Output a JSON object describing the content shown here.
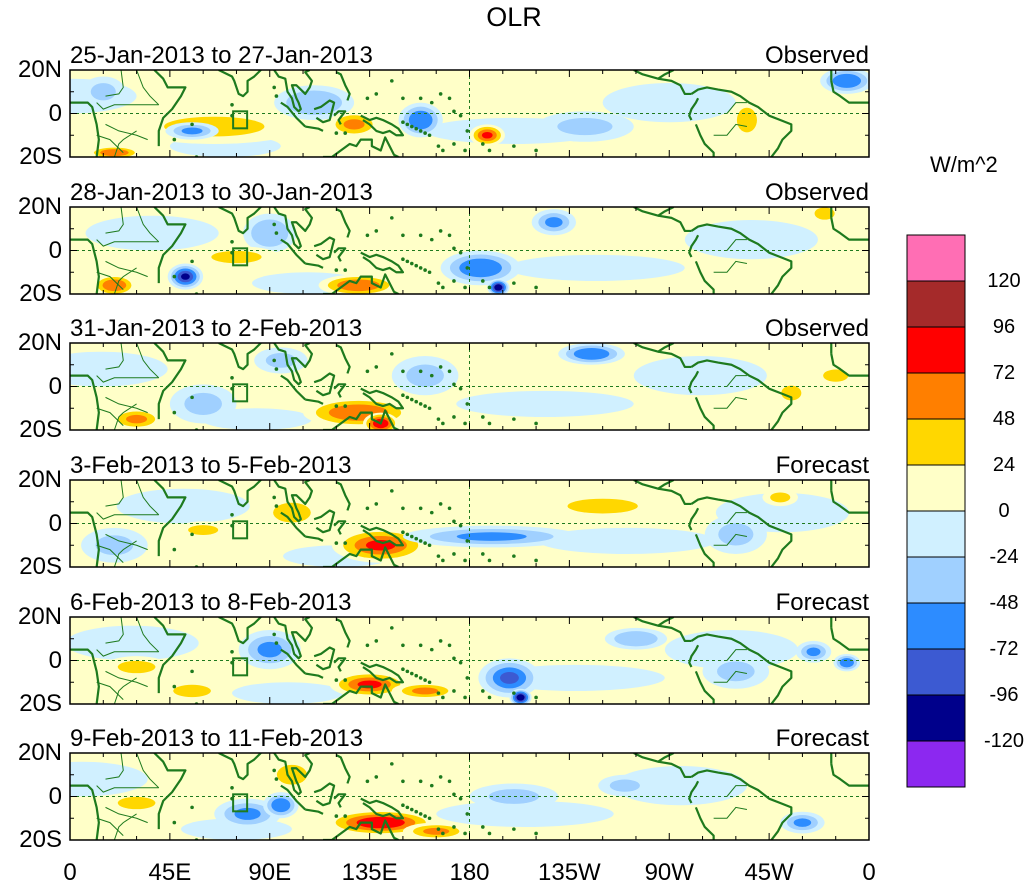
{
  "title": "OLR",
  "panels": [
    {
      "period": "25-Jan-2013 to 27-Jan-2013",
      "kind": "Observed"
    },
    {
      "period": "28-Jan-2013 to 30-Jan-2013",
      "kind": "Observed"
    },
    {
      "period": "31-Jan-2013 to 2-Feb-2013",
      "kind": "Observed"
    },
    {
      "period": "3-Feb-2013 to 5-Feb-2013",
      "kind": "Forecast"
    },
    {
      "period": "6-Feb-2013 to 8-Feb-2013",
      "kind": "Forecast"
    },
    {
      "period": "9-Feb-2013 to 11-Feb-2013",
      "kind": "Forecast"
    }
  ],
  "lat_labels": [
    "20N",
    "0",
    "20S"
  ],
  "lon_labels": [
    "0",
    "45E",
    "90E",
    "135E",
    "180",
    "135W",
    "90W",
    "45W",
    "0"
  ],
  "colorbar": {
    "unit": "W/m^2",
    "labels": [
      "120",
      "96",
      "72",
      "48",
      "24",
      "0",
      "-24",
      "-48",
      "-72",
      "-96",
      "-120"
    ],
    "colors": [
      "#ff6eb4",
      "#a52a2a",
      "#ff0000",
      "#ff7f00",
      "#ffd700",
      "#ffffc8",
      "#d0f0ff",
      "#a0d0ff",
      "#2d8cff",
      "#3c5ad2",
      "#00008b",
      "#8c28f0"
    ]
  },
  "colors": {
    "coast": "#1e7a1e",
    "neutral_positive": "#ffffc8",
    "neutral_negative": "#d0f0ff"
  },
  "anomalies": [
    [
      {
        "lon": 65,
        "lat": -6,
        "rlon": 40,
        "rlat": 8,
        "v": 30
      },
      {
        "lon": 55,
        "lat": -8,
        "rlon": 12,
        "rlat": 4,
        "v": -55
      },
      {
        "lon": 110,
        "lat": 5,
        "rlon": 18,
        "rlat": 8,
        "v": -40
      },
      {
        "lon": 128,
        "lat": -5,
        "rlon": 12,
        "rlat": 6,
        "v": 50
      },
      {
        "lon": 158,
        "lat": -3,
        "rlon": 10,
        "rlat": 8,
        "v": -60
      },
      {
        "lon": 188,
        "lat": -10,
        "rlon": 8,
        "rlat": 5,
        "v": 80
      },
      {
        "lon": 232,
        "lat": -6,
        "rlon": 22,
        "rlat": 7,
        "v": -30
      },
      {
        "lon": 15,
        "lat": 10,
        "rlon": 10,
        "rlat": 7,
        "v": -35
      },
      {
        "lon": 350,
        "lat": 15,
        "rlon": 12,
        "rlat": 6,
        "v": -60
      },
      {
        "lon": 305,
        "lat": -3,
        "rlon": 8,
        "rlat": 10,
        "v": 30
      },
      {
        "lon": 20,
        "lat": -18,
        "rlon": 12,
        "rlat": 3,
        "v": 70
      }
    ],
    [
      {
        "lon": 52,
        "lat": -12,
        "rlon": 8,
        "rlat": 6,
        "v": -105
      },
      {
        "lon": 20,
        "lat": -16,
        "rlon": 10,
        "rlat": 5,
        "v": 60
      },
      {
        "lon": 130,
        "lat": -16,
        "rlon": 18,
        "rlat": 5,
        "v": 70
      },
      {
        "lon": 90,
        "lat": 8,
        "rlon": 12,
        "rlat": 9,
        "v": -40
      },
      {
        "lon": 185,
        "lat": -8,
        "rlon": 18,
        "rlat": 8,
        "v": -70
      },
      {
        "lon": 193,
        "lat": -17,
        "rlon": 5,
        "rlat": 4,
        "v": -110
      },
      {
        "lon": 218,
        "lat": 13,
        "rlon": 10,
        "rlat": 6,
        "v": -55
      },
      {
        "lon": 340,
        "lat": 17,
        "rlon": 8,
        "rlat": 5,
        "v": 35
      },
      {
        "lon": 75,
        "lat": -3,
        "rlon": 20,
        "rlat": 5,
        "v": 30
      }
    ],
    [
      {
        "lon": 130,
        "lat": -12,
        "rlon": 25,
        "rlat": 7,
        "v": 65
      },
      {
        "lon": 140,
        "lat": -17,
        "rlon": 8,
        "rlat": 5,
        "v": 90
      },
      {
        "lon": 30,
        "lat": -15,
        "rlon": 12,
        "rlat": 5,
        "v": 55
      },
      {
        "lon": 235,
        "lat": 15,
        "rlon": 15,
        "rlat": 5,
        "v": -70
      },
      {
        "lon": 160,
        "lat": 5,
        "rlon": 15,
        "rlat": 9,
        "v": -35
      },
      {
        "lon": 60,
        "lat": -8,
        "rlon": 15,
        "rlat": 9,
        "v": -30
      },
      {
        "lon": 325,
        "lat": -3,
        "rlon": 8,
        "rlat": 6,
        "v": 35
      },
      {
        "lon": 345,
        "lat": 5,
        "rlon": 10,
        "rlat": 5,
        "v": 35
      },
      {
        "lon": 95,
        "lat": 12,
        "rlon": 12,
        "rlat": 6,
        "v": -25
      }
    ],
    [
      {
        "lon": 140,
        "lat": -10,
        "rlon": 22,
        "rlat": 8,
        "v": 75
      },
      {
        "lon": 190,
        "lat": -6,
        "rlon": 40,
        "rlat": 5,
        "v": -55
      },
      {
        "lon": 240,
        "lat": 8,
        "rlon": 28,
        "rlat": 6,
        "v": 30
      },
      {
        "lon": 60,
        "lat": -3,
        "rlon": 12,
        "rlat": 4,
        "v": 30
      },
      {
        "lon": 20,
        "lat": -10,
        "rlon": 15,
        "rlat": 8,
        "v": -30
      },
      {
        "lon": 300,
        "lat": -5,
        "rlon": 14,
        "rlat": 9,
        "v": -35
      },
      {
        "lon": 100,
        "lat": 5,
        "rlon": 15,
        "rlat": 8,
        "v": 30
      },
      {
        "lon": 320,
        "lat": 12,
        "rlon": 8,
        "rlat": 4,
        "v": 30
      }
    ],
    [
      {
        "lon": 135,
        "lat": -11,
        "rlon": 18,
        "rlat": 6,
        "v": 80
      },
      {
        "lon": 160,
        "lat": -14,
        "rlon": 15,
        "rlat": 4,
        "v": 55
      },
      {
        "lon": 198,
        "lat": -8,
        "rlon": 14,
        "rlat": 9,
        "v": -80
      },
      {
        "lon": 203,
        "lat": -17,
        "rlon": 5,
        "rlat": 4,
        "v": -110
      },
      {
        "lon": 90,
        "lat": 5,
        "rlon": 14,
        "rlat": 9,
        "v": -55
      },
      {
        "lon": 30,
        "lat": -3,
        "rlon": 15,
        "rlat": 5,
        "v": 30
      },
      {
        "lon": 55,
        "lat": -14,
        "rlon": 15,
        "rlat": 5,
        "v": 30
      },
      {
        "lon": 255,
        "lat": 10,
        "rlon": 14,
        "rlat": 5,
        "v": -45
      },
      {
        "lon": 300,
        "lat": -5,
        "rlon": 15,
        "rlat": 8,
        "v": -30
      },
      {
        "lon": 335,
        "lat": 4,
        "rlon": 8,
        "rlat": 5,
        "v": -55
      },
      {
        "lon": 350,
        "lat": -1,
        "rlon": 6,
        "rlat": 4,
        "v": -60
      }
    ],
    [
      {
        "lon": 140,
        "lat": -12,
        "rlon": 25,
        "rlat": 6,
        "v": 85
      },
      {
        "lon": 165,
        "lat": -16,
        "rlon": 15,
        "rlat": 4,
        "v": 55
      },
      {
        "lon": 80,
        "lat": -8,
        "rlon": 15,
        "rlat": 7,
        "v": -55
      },
      {
        "lon": 95,
        "lat": -4,
        "rlon": 8,
        "rlat": 6,
        "v": -70
      },
      {
        "lon": 30,
        "lat": -3,
        "rlon": 15,
        "rlat": 5,
        "v": 30
      },
      {
        "lon": 200,
        "lat": 0,
        "rlon": 20,
        "rlat": 6,
        "v": -30
      },
      {
        "lon": 330,
        "lat": -12,
        "rlon": 10,
        "rlat": 5,
        "v": -55
      },
      {
        "lon": 100,
        "lat": 10,
        "rlon": 12,
        "rlat": 8,
        "v": 25
      },
      {
        "lon": 250,
        "lat": 5,
        "rlon": 12,
        "rlat": 5,
        "v": -30
      }
    ]
  ]
}
